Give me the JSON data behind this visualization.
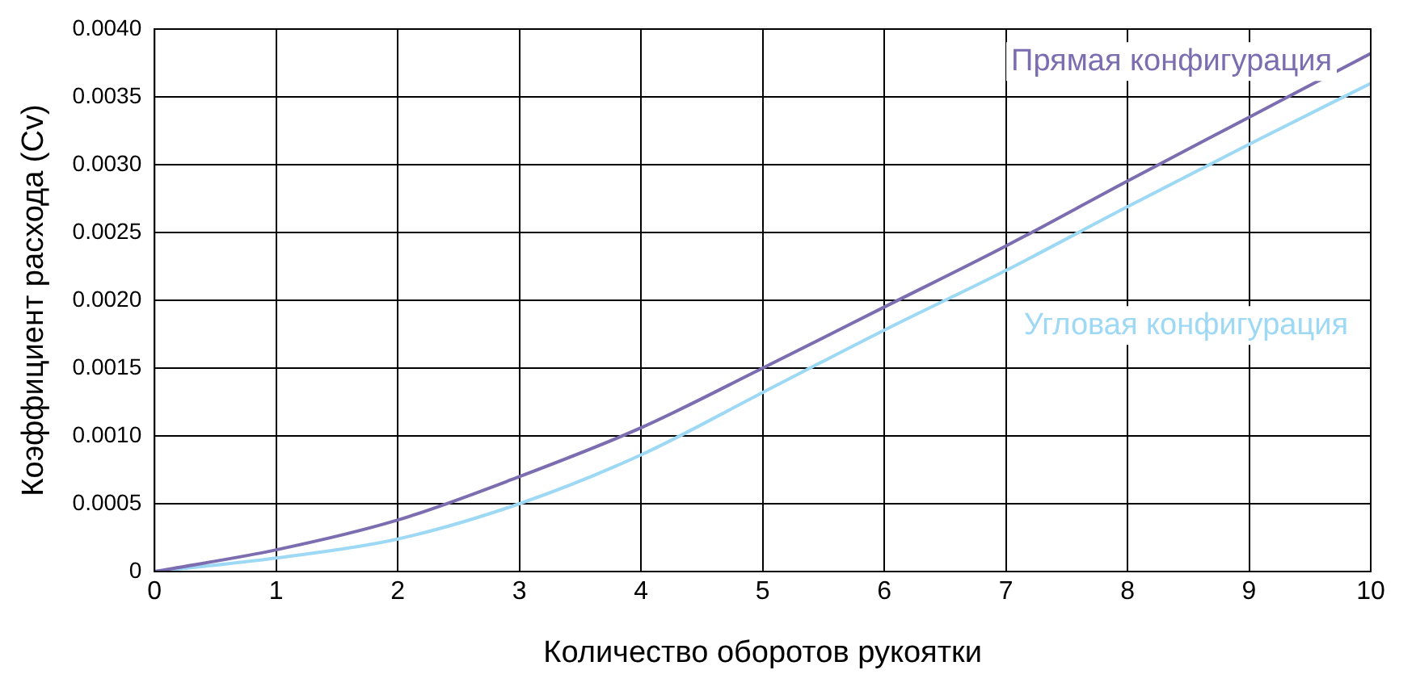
{
  "chart_data": {
    "type": "line",
    "xlabel": "Количество оборотов рукоятки",
    "ylabel": "Коэффициент расхода (Cv)",
    "x": [
      0,
      1,
      2,
      3,
      4,
      5,
      6,
      7,
      8,
      9,
      10
    ],
    "series": [
      {
        "name": "Прямая конфигурация",
        "color": "#7b6db0",
        "values": [
          0,
          0.00016,
          0.00038,
          0.0007,
          0.00106,
          0.0015,
          0.00195,
          0.0024,
          0.00288,
          0.00335,
          0.00382
        ]
      },
      {
        "name": "Угловая конфигурация",
        "color": "#9dd8f5",
        "values": [
          0,
          0.0001,
          0.00024,
          0.0005,
          0.00086,
          0.00132,
          0.00178,
          0.00222,
          0.00269,
          0.00315,
          0.0036
        ]
      }
    ],
    "xlim": [
      0,
      10
    ],
    "xticks": [
      0,
      1,
      2,
      3,
      4,
      5,
      6,
      7,
      8,
      9,
      10
    ],
    "ylim": [
      0,
      0.004
    ],
    "yticks": [
      {
        "value": 0,
        "label": "0"
      },
      {
        "value": 0.0005,
        "label": "0.0005"
      },
      {
        "value": 0.001,
        "label": "0.0010"
      },
      {
        "value": 0.0015,
        "label": "0.0015"
      },
      {
        "value": 0.002,
        "label": "0.0020"
      },
      {
        "value": 0.0025,
        "label": "0.0025"
      },
      {
        "value": 0.003,
        "label": "0.0030"
      },
      {
        "value": 0.0035,
        "label": "0.0035"
      },
      {
        "value": 0.004,
        "label": "0.0040"
      }
    ],
    "grid": true,
    "legend": false,
    "marker": "none",
    "line_style": "solid"
  }
}
